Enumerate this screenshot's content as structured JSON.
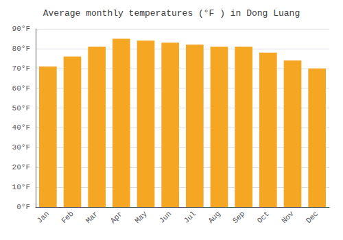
{
  "chart_data": {
    "type": "bar",
    "title": "Average monthly temperatures (°F ) in Dong Luang",
    "categories": [
      "Jan",
      "Feb",
      "Mar",
      "Apr",
      "May",
      "Jun",
      "Jul",
      "Aug",
      "Sep",
      "Oct",
      "Nov",
      "Dec"
    ],
    "values": [
      71,
      76,
      81,
      85,
      84,
      83,
      82,
      81,
      81,
      78,
      74,
      70
    ],
    "color": "#F5A623",
    "ylim": [
      0,
      90
    ],
    "yticks": [
      {
        "value": 0,
        "label": "0°F"
      },
      {
        "value": 10,
        "label": "10°F"
      },
      {
        "value": 20,
        "label": "20°F"
      },
      {
        "value": 30,
        "label": "30°F"
      },
      {
        "value": 40,
        "label": "40°F"
      },
      {
        "value": 50,
        "label": "50°F"
      },
      {
        "value": 60,
        "label": "60°F"
      },
      {
        "value": 70,
        "label": "70°F"
      },
      {
        "value": 80,
        "label": "80°F"
      },
      {
        "value": 90,
        "label": "90°F"
      }
    ],
    "grid": true
  }
}
